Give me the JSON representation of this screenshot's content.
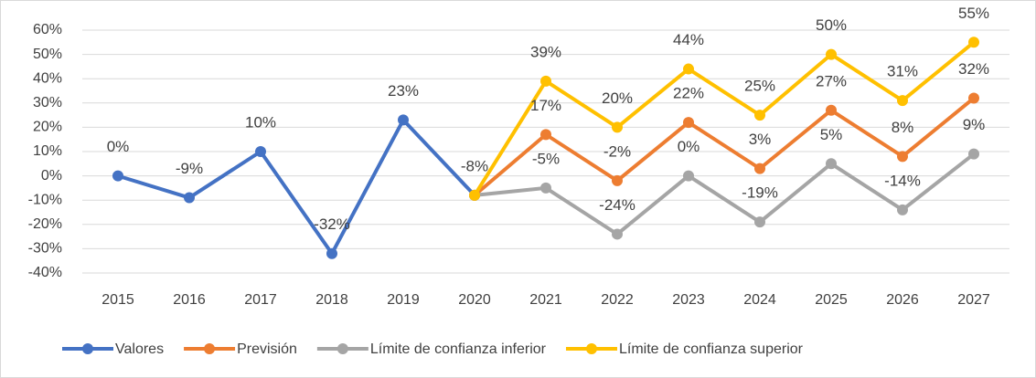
{
  "chart_data": {
    "type": "line",
    "categories": [
      "2015",
      "2016",
      "2017",
      "2018",
      "2019",
      "2020",
      "2021",
      "2022",
      "2023",
      "2024",
      "2025",
      "2026",
      "2027"
    ],
    "series": [
      {
        "name": "Valores",
        "color": "#4472c4",
        "values": [
          0,
          -9,
          10,
          -32,
          23,
          -8,
          null,
          null,
          null,
          null,
          null,
          null,
          null
        ],
        "value_labels": [
          "0%",
          "-9%",
          "10%",
          "-32%",
          "23%",
          "-8%",
          null,
          null,
          null,
          null,
          null,
          null,
          null
        ]
      },
      {
        "name": "Previsión",
        "color": "#ed7d31",
        "values": [
          null,
          null,
          null,
          null,
          null,
          -8,
          17,
          -2,
          22,
          3,
          27,
          8,
          32
        ],
        "value_labels": [
          null,
          null,
          null,
          null,
          null,
          null,
          "17%",
          "-2%",
          "22%",
          "3%",
          "27%",
          "8%",
          "32%"
        ]
      },
      {
        "name": "Límite de confianza inferior",
        "color": "#a5a5a5",
        "values": [
          null,
          null,
          null,
          null,
          null,
          -8,
          -5,
          -24,
          0,
          -19,
          5,
          -14,
          9
        ],
        "value_labels": [
          null,
          null,
          null,
          null,
          null,
          null,
          "-5%",
          "-24%",
          "0%",
          "-19%",
          "5%",
          "-14%",
          "9%"
        ]
      },
      {
        "name": "Límite de confianza superior",
        "color": "#ffc000",
        "values": [
          null,
          null,
          null,
          null,
          null,
          -8,
          39,
          20,
          44,
          25,
          50,
          31,
          55
        ],
        "value_labels": [
          null,
          null,
          null,
          null,
          null,
          null,
          "39%",
          "20%",
          "44%",
          "25%",
          "50%",
          "31%",
          "55%"
        ]
      }
    ],
    "ylim": [
      -40,
      60
    ],
    "yticks": [
      {
        "value": -40,
        "label": "-40%"
      },
      {
        "value": -30,
        "label": "-30%"
      },
      {
        "value": -20,
        "label": "-20%"
      },
      {
        "value": -10,
        "label": "-10%"
      },
      {
        "value": 0,
        "label": "0%"
      },
      {
        "value": 10,
        "label": "10%"
      },
      {
        "value": 20,
        "label": "20%"
      },
      {
        "value": 30,
        "label": "30%"
      },
      {
        "value": 40,
        "label": "40%"
      },
      {
        "value": 50,
        "label": "50%"
      },
      {
        "value": 60,
        "label": "60%"
      }
    ],
    "grid": true,
    "legend": "bottom"
  }
}
